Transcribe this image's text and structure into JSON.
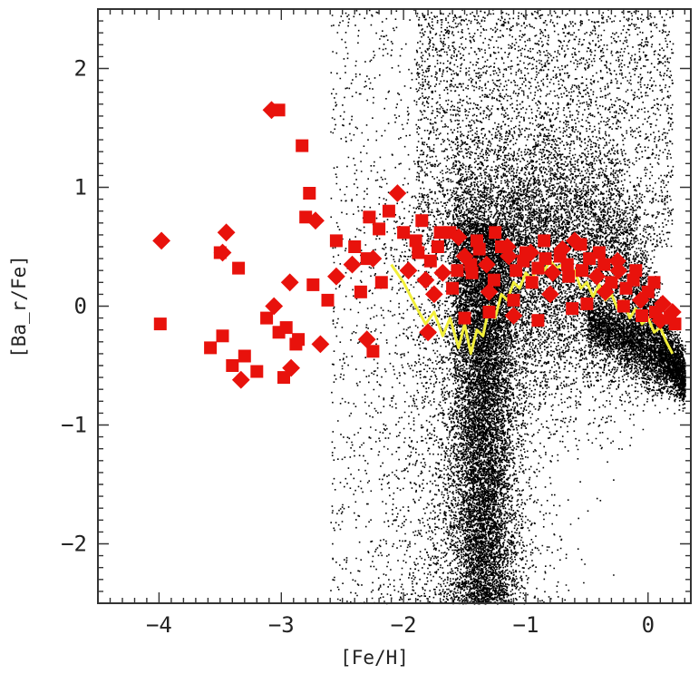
{
  "chart_data": {
    "type": "scatter",
    "title": "",
    "xlabel": "[Fe/H]",
    "ylabel": "[Ba_r/Fe]",
    "xlim": [
      -4.5,
      0.35
    ],
    "ylim": [
      -2.5,
      2.5
    ],
    "x_ticks": [
      -4,
      -3,
      -2,
      -1,
      0
    ],
    "x_tick_labels": [
      "−4",
      "−3",
      "−2",
      "−1",
      "0"
    ],
    "y_ticks": [
      -2,
      -1,
      0,
      1,
      2
    ],
    "y_tick_labels": [
      "−2",
      "−1",
      "0",
      "1",
      "2"
    ],
    "grid": false,
    "legend": "none",
    "colors": {
      "observed": "#e8120c",
      "model_cloud": "#000000",
      "model_mean": "#f2ef3a",
      "axis": "#333333"
    },
    "model_cloud": {
      "description_values": {
        "fe_h_min": -2.6,
        "fe_h_max": 0.3,
        "core_fe_h": -1.35,
        "core_ba_min": -2.5,
        "core_ba_max": 1.8
      }
    },
    "series": [
      {
        "marker": "square",
        "x": [
          -3.98,
          -3.99,
          -3.5,
          -3.45,
          -3.48,
          -3.58,
          -3.48,
          -3.35,
          -3.3,
          -3.08,
          -3.02,
          -3.12,
          -2.93,
          -2.83,
          -2.77,
          -2.72,
          -2.8,
          -2.55,
          -2.55,
          -2.4,
          -2.3,
          -2.25,
          -2.18,
          -2.12,
          -2.05,
          -2.2,
          -2.28,
          -2.42,
          -2.35,
          -2.62,
          -2.68,
          -2.74,
          -2.86,
          -2.92,
          -2.96,
          -3.02,
          -3.06,
          -3.2,
          -3.4,
          -3.33,
          -2.98,
          -2.88,
          -2.3,
          -2.25,
          -2.0,
          -1.96,
          -1.9,
          -1.88,
          -1.82,
          -1.78,
          -1.72,
          -1.68,
          -1.62,
          -1.56,
          -1.5,
          -1.44,
          -1.38,
          -1.32,
          -1.26,
          -1.2,
          -1.14,
          -1.08,
          -1.02,
          -0.96,
          -0.9,
          -0.84,
          -0.78,
          -0.72,
          -0.66,
          -0.6,
          -0.54,
          -0.48,
          -0.42,
          -0.36,
          -0.3,
          -0.24,
          -0.18,
          -0.12,
          -0.06,
          0.0,
          0.06,
          0.12,
          0.18,
          0.22,
          -1.75,
          -1.6,
          -1.45,
          -1.3,
          -1.1,
          -0.95,
          -0.8,
          -0.65,
          -0.5,
          -0.35,
          -0.2,
          -0.05,
          0.1,
          -1.85,
          -1.7,
          -1.55,
          -1.4,
          -1.25,
          -1.15,
          -1.0,
          -0.85,
          -0.7,
          -0.55,
          -0.4,
          -0.25,
          -0.1,
          0.05,
          0.2,
          -0.62,
          -0.9,
          -1.1,
          -1.3,
          -1.5,
          -1.8
        ],
        "y": [
          0.55,
          -0.15,
          0.45,
          0.62,
          -0.25,
          -0.35,
          0.45,
          0.32,
          -0.42,
          1.65,
          1.65,
          -0.1,
          0.2,
          1.35,
          0.95,
          0.72,
          0.75,
          0.55,
          0.25,
          0.5,
          0.4,
          0.4,
          0.2,
          0.8,
          0.95,
          0.65,
          0.75,
          0.35,
          0.12,
          0.05,
          -0.32,
          0.18,
          -0.28,
          -0.52,
          -0.18,
          -0.22,
          0.0,
          -0.55,
          -0.5,
          -0.62,
          -0.6,
          -0.32,
          -0.28,
          -0.38,
          0.62,
          0.3,
          0.55,
          0.45,
          0.22,
          0.38,
          0.5,
          0.28,
          0.62,
          0.3,
          0.42,
          0.28,
          0.48,
          0.35,
          0.22,
          0.5,
          0.42,
          0.3,
          0.38,
          0.45,
          0.32,
          0.4,
          0.28,
          0.42,
          0.35,
          0.55,
          0.3,
          0.4,
          0.25,
          0.35,
          0.2,
          0.3,
          0.15,
          0.22,
          0.05,
          0.12,
          -0.05,
          0.02,
          -0.1,
          -0.15,
          0.1,
          0.15,
          0.35,
          0.12,
          0.05,
          0.2,
          0.1,
          0.25,
          0.02,
          0.12,
          0.0,
          -0.08,
          -0.12,
          0.72,
          0.62,
          0.58,
          0.55,
          0.62,
          0.5,
          0.45,
          0.55,
          0.48,
          0.52,
          0.45,
          0.38,
          0.3,
          0.2,
          -0.05,
          -0.02,
          -0.12,
          -0.08,
          -0.05,
          -0.1,
          -0.22
        ]
      },
      {
        "type": "line",
        "x": [
          -2.1,
          -2.0,
          -1.9,
          -1.82,
          -1.75,
          -1.68,
          -1.62,
          -1.55,
          -1.5,
          -1.45,
          -1.4,
          -1.35,
          -1.3,
          -1.25,
          -1.2,
          -1.15,
          -1.1,
          -1.05,
          -1.0,
          -0.95,
          -0.9,
          -0.85,
          -0.8,
          -0.75,
          -0.7,
          -0.65,
          -0.6,
          -0.55,
          -0.5,
          -0.45,
          -0.4,
          -0.35,
          -0.3,
          -0.25,
          -0.2,
          -0.15,
          -0.1,
          -0.05,
          0.0,
          0.05,
          0.1,
          0.15,
          0.2
        ],
        "y": [
          0.35,
          0.2,
          0.0,
          -0.15,
          -0.05,
          -0.25,
          -0.1,
          -0.35,
          -0.15,
          -0.4,
          -0.2,
          -0.25,
          0.0,
          -0.1,
          0.1,
          0.05,
          0.2,
          0.15,
          0.28,
          0.22,
          0.35,
          0.3,
          0.38,
          0.32,
          0.35,
          0.25,
          0.3,
          0.15,
          0.2,
          0.08,
          0.18,
          0.05,
          0.1,
          -0.02,
          0.05,
          -0.1,
          -0.02,
          -0.15,
          -0.1,
          -0.22,
          -0.18,
          -0.3,
          -0.4
        ]
      }
    ]
  }
}
